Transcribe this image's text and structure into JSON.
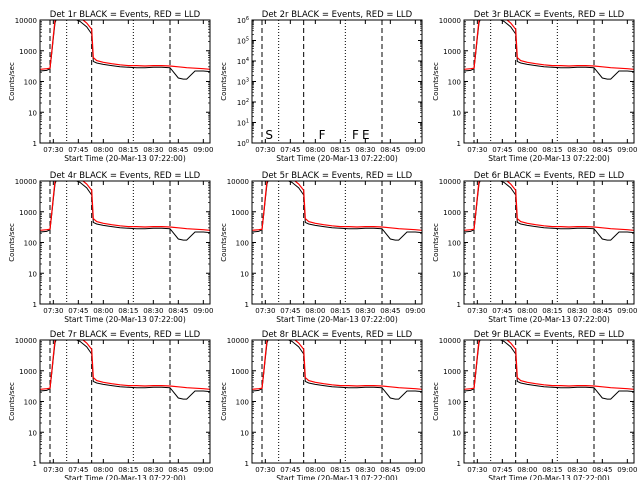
{
  "chart_data": {
    "type": "line",
    "common": {
      "xlabel": "Start Time (20-Mar-13 07:22:00)",
      "ylabel": "Counts/sec",
      "x_ticks": [
        "07:30",
        "07:45",
        "08:00",
        "08:15",
        "08:30",
        "08:45",
        "09:00"
      ],
      "x_tick_minutes": [
        30,
        45,
        60,
        75,
        90,
        105,
        120
      ],
      "x_minutes_range": [
        22,
        124
      ],
      "y_scale": "log",
      "series_colors": {
        "events": "#000000",
        "lld": "#ff0000"
      },
      "markers": {
        "dashed": [
          28,
          53,
          100
        ],
        "dotted": [
          38,
          78,
          138
        ],
        "solid": [
          130,
          156,
          180,
          190
        ]
      },
      "series_x": [
        22,
        26,
        28,
        29,
        30,
        31,
        33,
        35,
        38,
        42,
        46,
        50,
        53,
        54,
        56,
        60,
        65,
        70,
        75,
        80,
        85,
        90,
        95,
        100,
        105,
        108,
        110,
        115,
        120,
        124
      ],
      "lld_y": [
        250,
        260,
        270,
        900,
        3000,
        10000,
        20000,
        20000,
        16000,
        14000,
        12000,
        8000,
        5000,
        600,
        480,
        420,
        380,
        350,
        330,
        330,
        320,
        330,
        330,
        320,
        300,
        290,
        280,
        270,
        260,
        250
      ],
      "events_y": [
        220,
        230,
        260,
        800,
        2500,
        8000,
        16000,
        16000,
        13000,
        11000,
        9000,
        6000,
        3500,
        450,
        400,
        360,
        330,
        300,
        290,
        280,
        280,
        290,
        290,
        280,
        130,
        120,
        120,
        220,
        220,
        210
      ]
    },
    "panels": [
      {
        "title": "Det 1r BLACK = Events, RED = LLD",
        "ylim": [
          1,
          10000
        ],
        "y_ticks": [
          "1",
          "10",
          "100",
          "1000",
          "10000"
        ],
        "has_data": true
      },
      {
        "title": "Det 2r BLACK = Events, RED = LLD",
        "ylim": [
          1,
          1000000
        ],
        "y_ticks": [
          "10^0",
          "10^1",
          "10^2",
          "10^3",
          "10^4",
          "10^5",
          "10^6"
        ],
        "has_data": false,
        "annotations": [
          {
            "text": "S",
            "x_minute": 30
          },
          {
            "text": "F",
            "x_minute": 62
          },
          {
            "text": "F",
            "x_minute": 82
          },
          {
            "text": "E",
            "x_minute": 88
          }
        ]
      },
      {
        "title": "Det 3r BLACK = Events, RED = LLD",
        "ylim": [
          1,
          10000
        ],
        "y_ticks": [
          "1",
          "10",
          "100",
          "1000",
          "10000"
        ],
        "has_data": true
      },
      {
        "title": "Det 4r BLACK = Events, RED = LLD",
        "ylim": [
          1,
          10000
        ],
        "y_ticks": [
          "1",
          "10",
          "100",
          "1000",
          "10000"
        ],
        "has_data": true
      },
      {
        "title": "Det 5r BLACK = Events, RED = LLD",
        "ylim": [
          1,
          10000
        ],
        "y_ticks": [
          "1",
          "10",
          "100",
          "1000",
          "10000"
        ],
        "has_data": true
      },
      {
        "title": "Det 6r BLACK = Events, RED = LLD",
        "ylim": [
          1,
          10000
        ],
        "y_ticks": [
          "1",
          "10",
          "100",
          "1000",
          "10000"
        ],
        "has_data": true
      },
      {
        "title": "Det 7r BLACK = Events, RED = LLD",
        "ylim": [
          1,
          10000
        ],
        "y_ticks": [
          "1",
          "10",
          "100",
          "1000",
          "10000"
        ],
        "has_data": true
      },
      {
        "title": "Det 8r BLACK = Events, RED = LLD",
        "ylim": [
          1,
          10000
        ],
        "y_ticks": [
          "1",
          "10",
          "100",
          "1000",
          "10000"
        ],
        "has_data": true
      },
      {
        "title": "Det 9r BLACK = Events, RED = LLD",
        "ylim": [
          1,
          10000
        ],
        "y_ticks": [
          "1",
          "10",
          "100",
          "1000",
          "10000"
        ],
        "has_data": true
      }
    ]
  }
}
